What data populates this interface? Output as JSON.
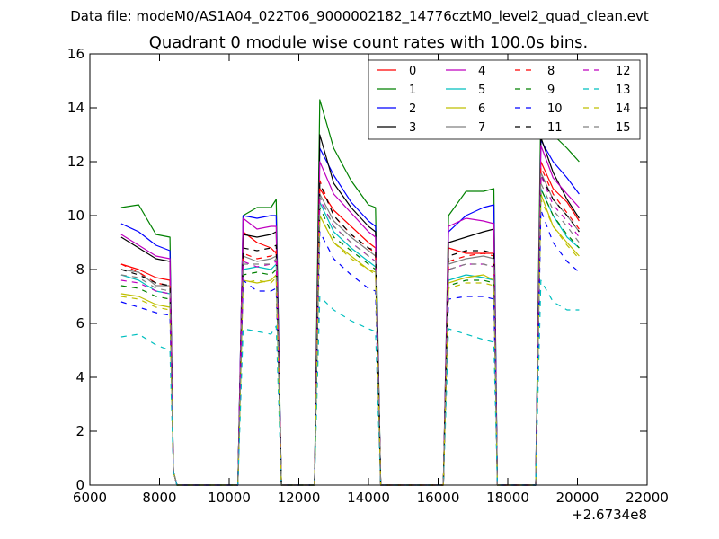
{
  "figure": {
    "suptitle": "Data file: modeM0/AS1A04_022T06_9000002182_14776cztM0_level2_quad_clean.evt",
    "offset_label": "+2.6734e8"
  },
  "chart_data": {
    "type": "line",
    "title": "Quadrant 0 module wise count rates with 100.0s bins.",
    "xlabel": "",
    "ylabel": "",
    "x_offset": 267340000,
    "xlim": [
      6000,
      22000
    ],
    "ylim": [
      0,
      16
    ],
    "xticks": [
      6000,
      8000,
      10000,
      12000,
      14000,
      16000,
      18000,
      20000,
      22000
    ],
    "xtick_labels": [
      "6000",
      "8000",
      "10000",
      "12000",
      "14000",
      "16000",
      "18000",
      "20000",
      "22000"
    ],
    "yticks": [
      0,
      2,
      4,
      6,
      8,
      10,
      12,
      14,
      16
    ],
    "ytick_labels": [
      "0",
      "2",
      "4",
      "6",
      "8",
      "10",
      "12",
      "14",
      "16"
    ],
    "grid": false,
    "legend_position": "upper-right",
    "legend_columns": 4,
    "x": [
      6900,
      7400,
      7900,
      8300,
      8400,
      8500,
      9000,
      9500,
      10000,
      10250,
      10400,
      10800,
      11200,
      11350,
      11500,
      12000,
      12450,
      12600,
      13000,
      13500,
      14000,
      14200,
      14350,
      15000,
      15500,
      16000,
      16150,
      16300,
      16800,
      17300,
      17600,
      17700,
      18000,
      18500,
      18800,
      18950,
      19300,
      19700,
      20050
    ],
    "series": [
      {
        "name": "0",
        "color": "#ff0000",
        "dash": "solid",
        "values": [
          8.2,
          8.0,
          7.7,
          7.6,
          0.5,
          0,
          0,
          0,
          0,
          0,
          9.4,
          9.0,
          8.8,
          8.6,
          0,
          0,
          0,
          11.0,
          10.2,
          9.6,
          9.0,
          8.8,
          0,
          0,
          0,
          0,
          0,
          8.8,
          8.6,
          8.6,
          8.6,
          0,
          0,
          0,
          0,
          12.0,
          11.0,
          10.5,
          9.8
        ]
      },
      {
        "name": "1",
        "color": "#008000",
        "dash": "solid",
        "values": [
          10.3,
          10.4,
          9.3,
          9.2,
          0.5,
          0,
          0,
          0,
          0,
          0,
          10.0,
          10.3,
          10.3,
          10.6,
          0,
          0,
          0,
          14.3,
          12.5,
          11.3,
          10.4,
          10.3,
          0,
          0,
          0,
          0,
          0,
          10.0,
          10.9,
          10.9,
          11.0,
          0,
          0,
          0,
          0,
          14.2,
          13.0,
          12.5,
          12.0
        ]
      },
      {
        "name": "2",
        "color": "#0000ff",
        "dash": "solid",
        "values": [
          9.7,
          9.4,
          8.9,
          8.7,
          0.5,
          0,
          0,
          0,
          0,
          0,
          10.0,
          9.9,
          10.0,
          10.0,
          0,
          0,
          0,
          12.5,
          11.5,
          10.5,
          9.8,
          9.6,
          0,
          0,
          0,
          0,
          0,
          9.4,
          10.0,
          10.3,
          10.4,
          0,
          0,
          0,
          0,
          12.8,
          12.0,
          11.4,
          10.8
        ]
      },
      {
        "name": "3",
        "color": "#000000",
        "dash": "solid",
        "values": [
          9.2,
          8.8,
          8.4,
          8.3,
          0.5,
          0,
          0,
          0,
          0,
          0,
          9.3,
          9.2,
          9.3,
          9.4,
          0,
          0,
          0,
          13.0,
          11.2,
          10.3,
          9.6,
          9.4,
          0,
          0,
          0,
          0,
          0,
          9.0,
          9.2,
          9.4,
          9.5,
          0,
          0,
          0,
          0,
          12.9,
          11.6,
          10.6,
          9.9
        ]
      },
      {
        "name": "4",
        "color": "#bf00bf",
        "dash": "solid",
        "values": [
          9.3,
          8.9,
          8.5,
          8.4,
          0.5,
          0,
          0,
          0,
          0,
          0,
          9.9,
          9.5,
          9.6,
          9.6,
          0,
          0,
          0,
          12.0,
          10.8,
          10.1,
          9.4,
          9.2,
          0,
          0,
          0,
          0,
          0,
          9.6,
          9.9,
          9.8,
          9.7,
          0,
          0,
          0,
          0,
          12.6,
          11.4,
          10.8,
          10.3
        ]
      },
      {
        "name": "5",
        "color": "#00bfbf",
        "dash": "solid",
        "values": [
          7.8,
          7.6,
          7.2,
          7.1,
          0.5,
          0,
          0,
          0,
          0,
          0,
          8.0,
          8.1,
          8.0,
          8.2,
          0,
          0,
          0,
          10.5,
          9.4,
          8.8,
          8.3,
          8.1,
          0,
          0,
          0,
          0,
          0,
          7.6,
          7.8,
          7.7,
          7.6,
          0,
          0,
          0,
          0,
          11.0,
          10.0,
          9.2,
          8.8
        ]
      },
      {
        "name": "6",
        "color": "#bfbf00",
        "dash": "solid",
        "values": [
          7.1,
          7.0,
          6.7,
          6.6,
          0.5,
          0,
          0,
          0,
          0,
          0,
          7.6,
          7.5,
          7.6,
          7.8,
          0,
          0,
          0,
          10.0,
          9.0,
          8.5,
          8.0,
          7.9,
          0,
          0,
          0,
          0,
          0,
          7.5,
          7.7,
          7.8,
          7.6,
          0,
          0,
          0,
          0,
          10.8,
          9.6,
          9.0,
          8.5
        ]
      },
      {
        "name": "7",
        "color": "#808080",
        "dash": "solid",
        "values": [
          8.0,
          7.9,
          7.4,
          7.4,
          0.5,
          0,
          0,
          0,
          0,
          0,
          8.5,
          8.3,
          8.4,
          8.5,
          0,
          0,
          0,
          10.8,
          9.8,
          9.2,
          8.7,
          8.5,
          0,
          0,
          0,
          0,
          0,
          8.2,
          8.4,
          8.5,
          8.4,
          0,
          0,
          0,
          0,
          11.6,
          10.6,
          10.0,
          9.4
        ]
      },
      {
        "name": "8",
        "color": "#ff0000",
        "dash": "dashed",
        "values": [
          8.2,
          7.9,
          7.5,
          7.4,
          0.5,
          0,
          0,
          0,
          0,
          0,
          8.6,
          8.4,
          8.5,
          8.7,
          0,
          0,
          0,
          11.3,
          10.0,
          9.3,
          8.8,
          8.6,
          0,
          0,
          0,
          0,
          0,
          8.3,
          8.5,
          8.6,
          8.5,
          0,
          0,
          0,
          0,
          11.8,
          10.8,
          10.1,
          9.5
        ]
      },
      {
        "name": "9",
        "color": "#008000",
        "dash": "dashed",
        "values": [
          7.4,
          7.3,
          7.0,
          6.9,
          0.5,
          0,
          0,
          0,
          0,
          0,
          7.8,
          7.9,
          7.8,
          8.0,
          0,
          0,
          0,
          10.3,
          9.2,
          8.7,
          8.2,
          8.0,
          0,
          0,
          0,
          0,
          0,
          7.4,
          7.6,
          7.6,
          7.5,
          0,
          0,
          0,
          0,
          11.0,
          10.0,
          9.3,
          8.8
        ]
      },
      {
        "name": "10",
        "color": "#0000ff",
        "dash": "dashed",
        "values": [
          6.8,
          6.6,
          6.4,
          6.3,
          0.5,
          0,
          0,
          0,
          0,
          0,
          7.6,
          7.2,
          7.2,
          7.3,
          0,
          0,
          0,
          9.4,
          8.4,
          7.8,
          7.3,
          7.2,
          0,
          0,
          0,
          0,
          0,
          6.9,
          7.0,
          7.0,
          6.9,
          0,
          0,
          0,
          0,
          10.2,
          9.0,
          8.3,
          7.9
        ]
      },
      {
        "name": "11",
        "color": "#000000",
        "dash": "dashed",
        "values": [
          8.0,
          7.8,
          7.5,
          7.4,
          0.5,
          0,
          0,
          0,
          0,
          0,
          8.8,
          8.7,
          8.8,
          8.9,
          0,
          0,
          0,
          11.2,
          10.0,
          9.3,
          8.8,
          8.7,
          0,
          0,
          0,
          0,
          0,
          8.5,
          8.7,
          8.7,
          8.6,
          0,
          0,
          0,
          0,
          11.5,
          10.6,
          10.0,
          9.4
        ]
      },
      {
        "name": "12",
        "color": "#bf00bf",
        "dash": "dashed",
        "values": [
          7.6,
          7.5,
          7.2,
          7.1,
          0.5,
          0,
          0,
          0,
          0,
          0,
          8.3,
          8.1,
          8.2,
          8.3,
          0,
          0,
          0,
          10.6,
          9.6,
          9.0,
          8.5,
          8.3,
          0,
          0,
          0,
          0,
          0,
          8.0,
          8.2,
          8.2,
          8.1,
          0,
          0,
          0,
          0,
          11.5,
          10.4,
          9.8,
          9.2
        ]
      },
      {
        "name": "13",
        "color": "#00bfbf",
        "dash": "dashed",
        "values": [
          5.5,
          5.6,
          5.2,
          5.0,
          0.5,
          0,
          0,
          0,
          0,
          0,
          5.8,
          5.7,
          5.6,
          5.9,
          0,
          0,
          0,
          7.0,
          6.5,
          6.1,
          5.8,
          5.7,
          0,
          0,
          0,
          0,
          0,
          5.8,
          5.6,
          5.4,
          5.3,
          0,
          0,
          0,
          0,
          7.6,
          6.8,
          6.5,
          6.5
        ]
      },
      {
        "name": "14",
        "color": "#bfbf00",
        "dash": "dashed",
        "values": [
          7.0,
          6.9,
          6.6,
          6.5,
          0.5,
          0,
          0,
          0,
          0,
          0,
          7.5,
          7.6,
          7.5,
          7.7,
          0,
          0,
          0,
          10.0,
          9.0,
          8.4,
          8.0,
          7.8,
          0,
          0,
          0,
          0,
          0,
          7.3,
          7.5,
          7.5,
          7.4,
          0,
          0,
          0,
          0,
          10.6,
          9.6,
          8.9,
          8.4
        ]
      },
      {
        "name": "15",
        "color": "#808080",
        "dash": "dashed",
        "values": [
          7.8,
          7.7,
          7.3,
          7.2,
          0.5,
          0,
          0,
          0,
          0,
          0,
          8.2,
          8.2,
          8.2,
          8.4,
          0,
          0,
          0,
          10.7,
          9.6,
          9.0,
          8.5,
          8.3,
          0,
          0,
          0,
          0,
          0,
          8.0,
          8.2,
          8.2,
          8.1,
          0,
          0,
          0,
          0,
          11.2,
          10.2,
          9.6,
          9.0
        ]
      }
    ]
  }
}
